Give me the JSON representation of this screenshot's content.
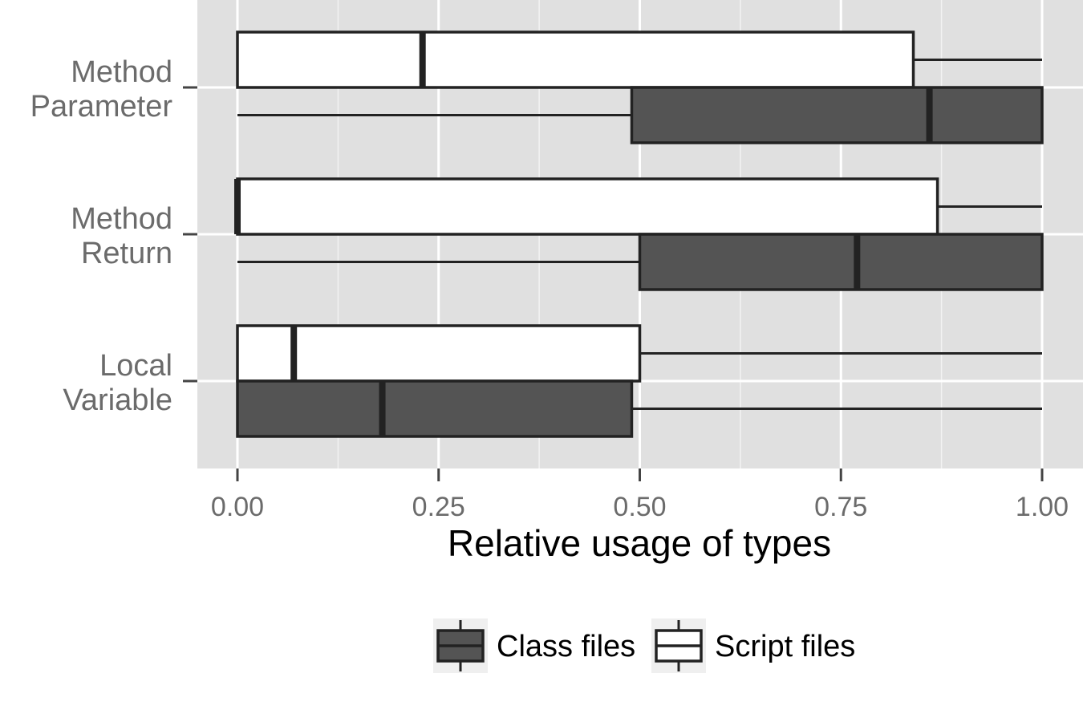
{
  "chart_data": {
    "type": "boxplot",
    "orientation": "horizontal",
    "xlabel": "Relative usage of types",
    "ylabel": "",
    "xlim": [
      0,
      1
    ],
    "x_ticks": [
      "0.00",
      "0.25",
      "0.50",
      "0.75",
      "1.00"
    ],
    "x_tick_values": [
      0,
      0.25,
      0.5,
      0.75,
      1.0
    ],
    "categories": [
      {
        "label_lines": [
          "Method",
          "Parameter"
        ]
      },
      {
        "label_lines": [
          "Method",
          "Return"
        ]
      },
      {
        "label_lines": [
          "Local",
          "Variable"
        ]
      }
    ],
    "series": [
      {
        "name": "Script files",
        "fill": "#ffffff",
        "boxes": [
          {
            "category": 0,
            "min": 0.0,
            "q1": 0.0,
            "median": 0.23,
            "q3": 0.84,
            "max": 1.0
          },
          {
            "category": 1,
            "min": 0.0,
            "q1": 0.0,
            "median": 0.0,
            "q3": 0.87,
            "max": 1.0
          },
          {
            "category": 2,
            "min": 0.0,
            "q1": 0.0,
            "median": 0.07,
            "q3": 0.5,
            "max": 1.0
          }
        ]
      },
      {
        "name": "Class files",
        "fill": "#545454",
        "boxes": [
          {
            "category": 0,
            "min": 0.0,
            "q1": 0.49,
            "median": 0.86,
            "q3": 1.0,
            "max": 1.0
          },
          {
            "category": 1,
            "min": 0.0,
            "q1": 0.5,
            "median": 0.77,
            "q3": 1.0,
            "max": 1.0
          },
          {
            "category": 2,
            "min": 0.0,
            "q1": 0.0,
            "median": 0.18,
            "q3": 0.49,
            "max": 1.0
          }
        ]
      }
    ],
    "legend": {
      "position": "bottom",
      "entries": [
        "Class files",
        "Script files"
      ]
    },
    "grid": true,
    "panel_background": "#e0e0e0"
  }
}
